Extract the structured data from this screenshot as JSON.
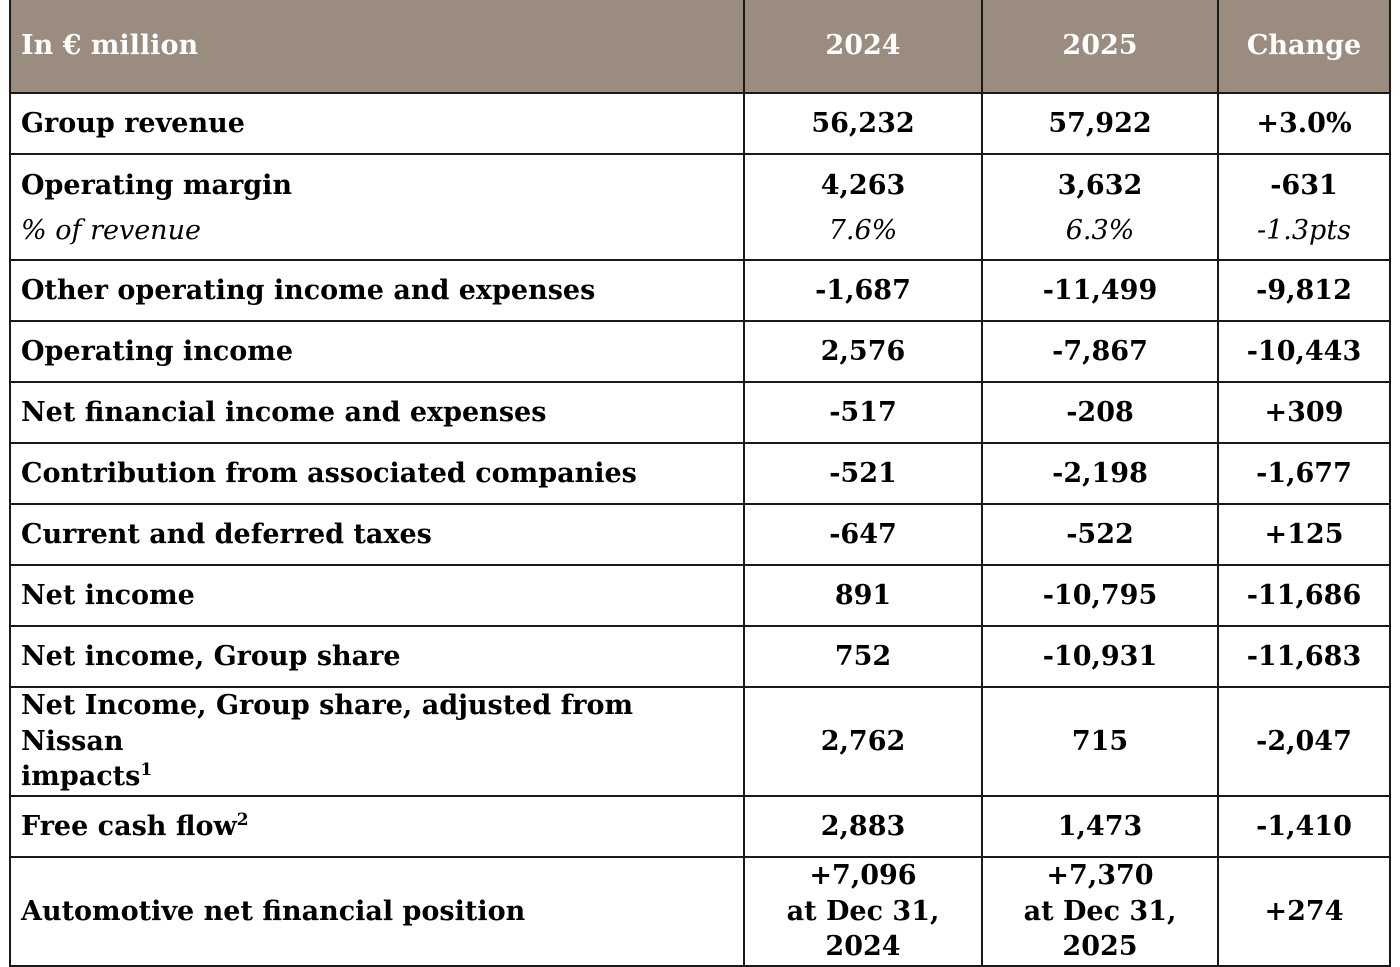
{
  "table": {
    "header": {
      "label": "In € million",
      "col_2024": "2024",
      "col_2025": "2025",
      "col_change": "Change"
    },
    "rows": {
      "group_revenue": {
        "label": "Group revenue",
        "v2024": "56,232",
        "v2025": "57,922",
        "change": "+3.0%"
      },
      "operating_margin": {
        "label": "Operating margin",
        "v2024": "4,263",
        "v2025": "3,632",
        "change": "-631",
        "sub_label": "% of revenue",
        "sub_v2024": "7.6%",
        "sub_v2025": "6.3%",
        "sub_change": "-1.3pts"
      },
      "other_operating": {
        "label": "Other operating income and expenses",
        "v2024": "-1,687",
        "v2025": "-11,499",
        "change": "-9,812"
      },
      "operating_income": {
        "label": "Operating income",
        "v2024": "2,576",
        "v2025": "-7,867",
        "change": "-10,443"
      },
      "net_financial": {
        "label": "Net financial income and expenses",
        "v2024": "-517",
        "v2025": "-208",
        "change": "+309"
      },
      "associated_companies": {
        "label": "Contribution from associated companies",
        "v2024": "-521",
        "v2025": "-2,198",
        "change": "-1,677"
      },
      "taxes": {
        "label": "Current and deferred taxes",
        "v2024": "-647",
        "v2025": "-522",
        "change": "+125"
      },
      "net_income": {
        "label": "Net income",
        "v2024": "891",
        "v2025": "-10,795",
        "change": "-11,686"
      },
      "net_income_group": {
        "label": "Net income, Group share",
        "v2024": "752",
        "v2025": "-10,931",
        "change": "-11,683"
      },
      "net_income_adjusted": {
        "label_line1": "Net Income, Group share, adjusted from Nissan",
        "label_line2": "impacts",
        "footnote": "1",
        "v2024": "2,762",
        "v2025": "715",
        "change": "-2,047"
      },
      "free_cash_flow": {
        "label": "Free cash flow",
        "footnote": "2",
        "v2024": "2,883",
        "v2025": "1,473",
        "change": "-1,410"
      },
      "automotive_nfp": {
        "label": "Automotive net financial position",
        "v2024_line1": "+7,096",
        "v2024_line2": "at Dec 31, 2024",
        "v2025_line1": "+7,370",
        "v2025_line2": "at Dec 31,",
        "v2025_line3": "2025",
        "change": "+274"
      }
    }
  },
  "colors": {
    "header_background": "#9a8c7e",
    "header_text": "#ffffff",
    "border": "#1a1a1a"
  }
}
